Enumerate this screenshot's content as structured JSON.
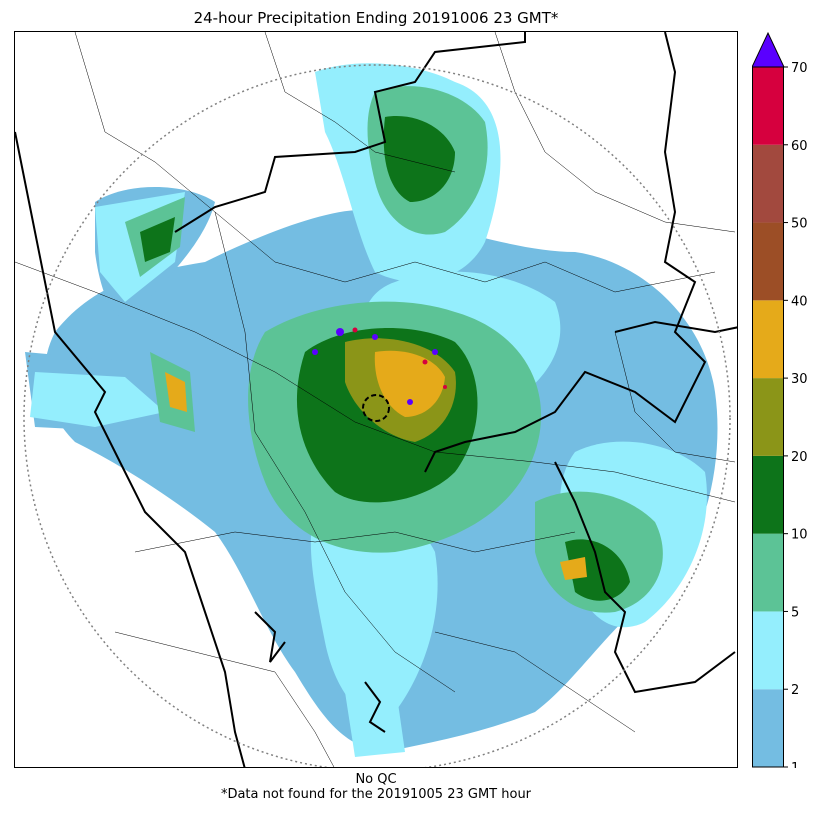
{
  "title": "24-hour Precipitation Ending 20191006 23 GMT*",
  "footer": {
    "qc_note": "No QC",
    "missing_note": "*Data not found for the 20191005 23 GMT hour"
  },
  "colorbar": {
    "levels": [
      {
        "label": "1",
        "color": "#74bde2"
      },
      {
        "label": "2",
        "color": "#94eefd"
      },
      {
        "label": "5",
        "color": "#5cc396"
      },
      {
        "label": "10",
        "color": "#0d741a"
      },
      {
        "label": "20",
        "color": "#8b9518"
      },
      {
        "label": "30",
        "color": "#e5aa1a"
      },
      {
        "label": "40",
        "color": "#9c4e26"
      },
      {
        "label": "50",
        "color": "#a2493e"
      },
      {
        "label": "60",
        "color": "#d6003e"
      },
      {
        "label": "70",
        "color": ""
      }
    ],
    "extend_color": "#5a00ff"
  },
  "map": {
    "range_ring_color": "#808080",
    "radar_site_marker": "dashed-circle"
  }
}
